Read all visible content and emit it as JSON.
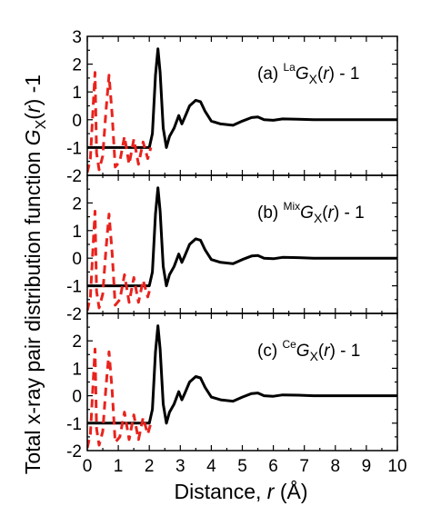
{
  "colors": {
    "solid": "#000000",
    "dashed": "#e8231d"
  },
  "chart_data": {
    "type": "line",
    "layout": "3 stacked panels, shared x axis",
    "xlabel": {
      "text": "Distance, ",
      "var": "r",
      "unit": " (Å)"
    },
    "ylabel": {
      "text": "Total x-ray pair distribution function ",
      "G": "G",
      "sub": "X",
      "paren": "(",
      "var": "r",
      "close": ") -1"
    },
    "xlim": [
      0,
      10
    ],
    "x_ticks": [
      "0",
      "1",
      "2",
      "3",
      "4",
      "5",
      "6",
      "7",
      "8",
      "9",
      "10"
    ],
    "grid": false,
    "panels": [
      {
        "label": {
          "prefix": "(a) ",
          "sup": "La",
          "G": "G",
          "sub": "X",
          "paren": "(",
          "var": "r",
          "suffix": ") - 1"
        },
        "ylim": [
          -2,
          3
        ],
        "y_ticks": [
          "3",
          "2",
          "1",
          "0",
          "-1",
          "-2"
        ],
        "series": [
          {
            "style": "solid",
            "x": [
              0,
              2,
              2.1,
              2.2,
              2.28,
              2.35,
              2.45,
              2.55,
              2.65,
              2.8,
              2.95,
              3.05,
              3.15,
              3.3,
              3.5,
              3.65,
              3.8,
              4.0,
              4.3,
              4.7,
              5.0,
              5.3,
              5.5,
              5.7,
              6.0,
              6.3,
              6.8,
              7.3,
              8,
              8.5,
              9,
              9.5,
              10
            ],
            "y": [
              -1,
              -1,
              -0.5,
              1.6,
              2.55,
              1.7,
              -0.3,
              -1.0,
              -0.6,
              -0.3,
              0.15,
              -0.15,
              0.1,
              0.5,
              0.7,
              0.65,
              0.3,
              -0.05,
              -0.15,
              -0.2,
              -0.05,
              0.08,
              0.1,
              0.0,
              -0.02,
              0.03,
              0.02,
              0.0,
              0.0,
              0.0,
              0.0,
              0.0,
              0.0
            ]
          },
          {
            "style": "dashed",
            "x": [
              0,
              0.1,
              0.2,
              0.25,
              0.3,
              0.38,
              0.5,
              0.6,
              0.7,
              0.8,
              0.9,
              1.05,
              1.2,
              1.35,
              1.5,
              1.65,
              1.8,
              1.95,
              2.05
            ],
            "y": [
              -1.9,
              -1.4,
              0.7,
              1.7,
              -1.2,
              -1.8,
              -1.3,
              0.3,
              1.6,
              0.2,
              -1.7,
              -1.5,
              -0.6,
              -1.6,
              -0.7,
              -1.6,
              -0.8,
              -1.4,
              -1.0
            ]
          }
        ]
      },
      {
        "label": {
          "prefix": "(b) ",
          "sup": "Mix",
          "G": "G",
          "sub": "X",
          "paren": "(",
          "var": "r",
          "suffix": ") - 1"
        },
        "ylim": [
          -2,
          3
        ],
        "y_ticks": [
          "2",
          "1",
          "0",
          "-1",
          "-2"
        ],
        "series": [
          {
            "style": "solid",
            "x": [
              0,
              2,
              2.1,
              2.2,
              2.28,
              2.35,
              2.45,
              2.55,
              2.65,
              2.8,
              2.95,
              3.05,
              3.15,
              3.3,
              3.5,
              3.65,
              3.8,
              4.0,
              4.3,
              4.7,
              5.0,
              5.3,
              5.5,
              5.7,
              6.0,
              6.3,
              6.8,
              7.3,
              8,
              8.5,
              9,
              9.5,
              10
            ],
            "y": [
              -1,
              -1,
              -0.5,
              1.6,
              2.55,
              1.7,
              -0.3,
              -1.0,
              -0.6,
              -0.3,
              0.15,
              -0.15,
              0.1,
              0.5,
              0.7,
              0.65,
              0.3,
              -0.05,
              -0.15,
              -0.2,
              -0.05,
              0.08,
              0.1,
              0.0,
              -0.02,
              0.03,
              0.02,
              0.0,
              0.0,
              0.0,
              0.0,
              0.0,
              0.0
            ]
          },
          {
            "style": "dashed",
            "x": [
              0,
              0.1,
              0.2,
              0.25,
              0.3,
              0.38,
              0.5,
              0.6,
              0.7,
              0.8,
              0.9,
              1.05,
              1.2,
              1.35,
              1.5,
              1.65,
              1.8,
              1.95,
              2.05
            ],
            "y": [
              -1.9,
              -1.4,
              0.7,
              1.7,
              -1.2,
              -1.8,
              -1.3,
              0.3,
              1.6,
              0.2,
              -1.7,
              -1.5,
              -0.6,
              -1.6,
              -0.7,
              -1.6,
              -0.8,
              -1.4,
              -1.0
            ]
          }
        ]
      },
      {
        "label": {
          "prefix": "(c) ",
          "sup": "Ce",
          "G": "G",
          "sub": "X",
          "paren": "(",
          "var": "r",
          "suffix": ") - 1"
        },
        "ylim": [
          -2,
          3
        ],
        "y_ticks": [
          "2",
          "1",
          "0",
          "-1",
          "-2"
        ],
        "series": [
          {
            "style": "solid",
            "x": [
              0,
              2,
              2.1,
              2.2,
              2.28,
              2.35,
              2.45,
              2.55,
              2.65,
              2.8,
              2.95,
              3.05,
              3.15,
              3.3,
              3.5,
              3.65,
              3.8,
              4.0,
              4.3,
              4.7,
              5.0,
              5.3,
              5.5,
              5.7,
              6.0,
              6.3,
              6.8,
              7.3,
              8,
              8.5,
              9,
              9.5,
              10
            ],
            "y": [
              -1,
              -1,
              -0.5,
              1.6,
              2.55,
              1.7,
              -0.3,
              -1.0,
              -0.6,
              -0.3,
              0.15,
              -0.15,
              0.1,
              0.5,
              0.7,
              0.65,
              0.3,
              -0.05,
              -0.15,
              -0.2,
              -0.05,
              0.08,
              0.1,
              0.0,
              -0.02,
              0.03,
              0.02,
              0.0,
              0.0,
              0.0,
              0.0,
              0.0,
              0.0
            ]
          },
          {
            "style": "dashed",
            "x": [
              0,
              0.1,
              0.2,
              0.25,
              0.3,
              0.38,
              0.5,
              0.6,
              0.7,
              0.8,
              0.9,
              1.05,
              1.2,
              1.35,
              1.5,
              1.65,
              1.8,
              1.95,
              2.05
            ],
            "y": [
              -1.9,
              -1.4,
              0.7,
              1.7,
              -1.2,
              -1.8,
              -1.3,
              0.3,
              1.6,
              0.2,
              -1.7,
              -1.5,
              -0.6,
              -1.6,
              -0.7,
              -1.6,
              -0.8,
              -1.4,
              -1.0
            ]
          }
        ]
      }
    ]
  }
}
